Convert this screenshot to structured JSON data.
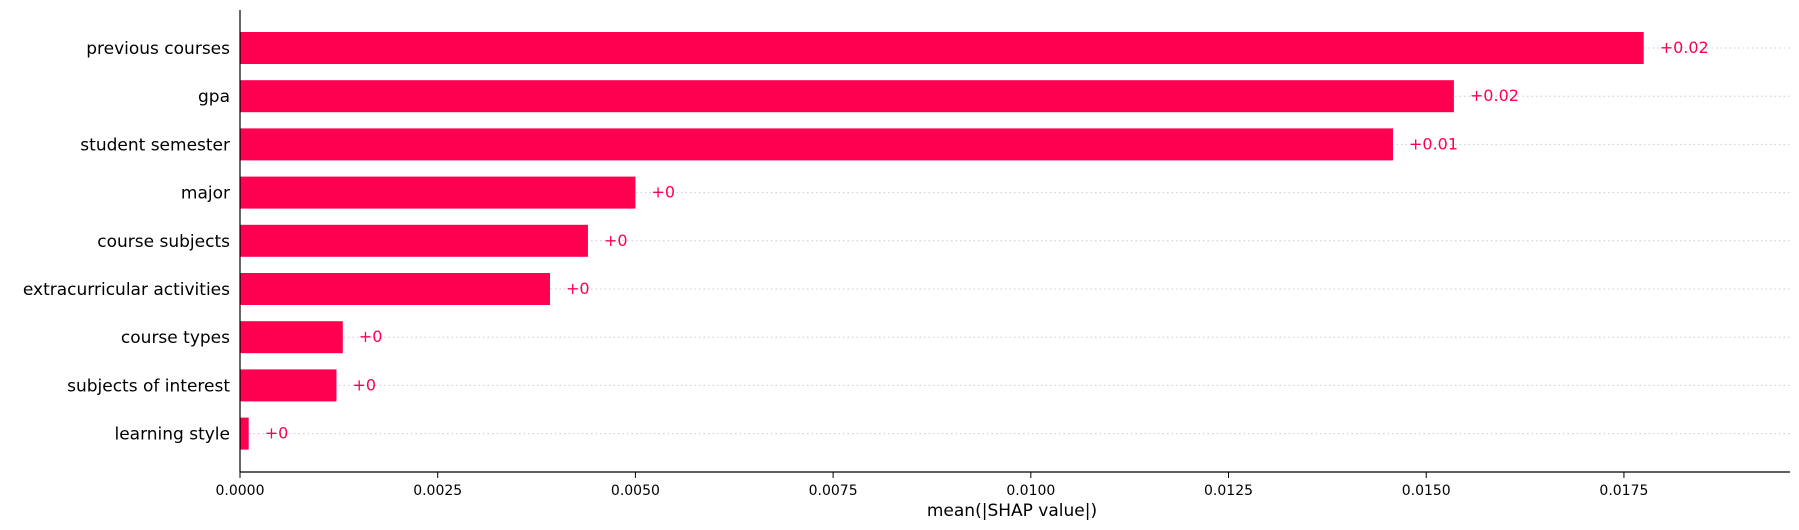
{
  "chart_data": {
    "type": "bar",
    "orientation": "horizontal",
    "categories": [
      "previous courses",
      "gpa",
      "student semester",
      "major",
      "course subjects",
      "extracurricular activities",
      "course types",
      "subjects of interest",
      "learning style"
    ],
    "values": [
      0.01775,
      0.01535,
      0.01458,
      0.005,
      0.0044,
      0.00392,
      0.0013,
      0.00122,
      0.00011
    ],
    "data_labels": [
      "+0.02",
      "+0.02",
      "+0.01",
      "+0",
      "+0",
      "+0",
      "+0",
      "+0",
      "+0"
    ],
    "xlabel": "mean(|SHAP value|)",
    "ylabel": "",
    "title": "",
    "xlim": [
      0,
      0.0196
    ],
    "x_ticks": [
      0,
      0.0025,
      0.005,
      0.0075,
      0.01,
      0.0125,
      0.015,
      0.0175
    ],
    "x_tick_labels": [
      "0.0000",
      "0.0025",
      "0.0050",
      "0.0075",
      "0.0100",
      "0.0125",
      "0.0150",
      "0.0175"
    ],
    "grid": "dotted horizontal guide lines per row",
    "legend": "none",
    "colors": {
      "bar": "#ff0051",
      "data_label": "#ff0051",
      "guide_line": "#cccccc",
      "axis": "#000000"
    }
  }
}
